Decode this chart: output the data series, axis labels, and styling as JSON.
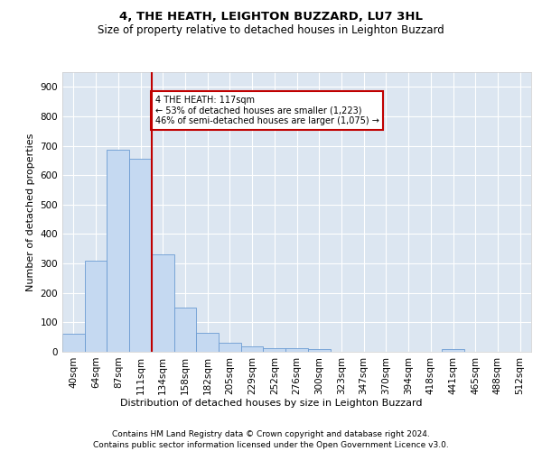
{
  "title1": "4, THE HEATH, LEIGHTON BUZZARD, LU7 3HL",
  "title2": "Size of property relative to detached houses in Leighton Buzzard",
  "xlabel": "Distribution of detached houses by size in Leighton Buzzard",
  "ylabel": "Number of detached properties",
  "bar_values": [
    62,
    310,
    685,
    655,
    330,
    150,
    65,
    32,
    18,
    12,
    12,
    10,
    0,
    0,
    0,
    0,
    0,
    8,
    0,
    0,
    0
  ],
  "bar_labels": [
    "40sqm",
    "64sqm",
    "87sqm",
    "111sqm",
    "134sqm",
    "158sqm",
    "182sqm",
    "205sqm",
    "229sqm",
    "252sqm",
    "276sqm",
    "300sqm",
    "323sqm",
    "347sqm",
    "370sqm",
    "394sqm",
    "418sqm",
    "441sqm",
    "465sqm",
    "488sqm",
    "512sqm"
  ],
  "bar_color": "#c5d9f1",
  "bar_edge_color": "#6b9bd2",
  "vline_x": 3.5,
  "vline_color": "#c00000",
  "annotation_text": "4 THE HEATH: 117sqm\n← 53% of detached houses are smaller (1,223)\n46% of semi-detached houses are larger (1,075) →",
  "annotation_box_color": "#ffffff",
  "annotation_box_edge": "#c00000",
  "ylim": [
    0,
    950
  ],
  "yticks": [
    0,
    100,
    200,
    300,
    400,
    500,
    600,
    700,
    800,
    900
  ],
  "footer1": "Contains HM Land Registry data © Crown copyright and database right 2024.",
  "footer2": "Contains public sector information licensed under the Open Government Licence v3.0.",
  "bg_color": "#dce6f1",
  "fig_bg": "#ffffff",
  "title1_fontsize": 9.5,
  "title2_fontsize": 8.5,
  "ylabel_fontsize": 8,
  "xlabel_fontsize": 8,
  "tick_fontsize": 7.5,
  "footer_fontsize": 6.5
}
